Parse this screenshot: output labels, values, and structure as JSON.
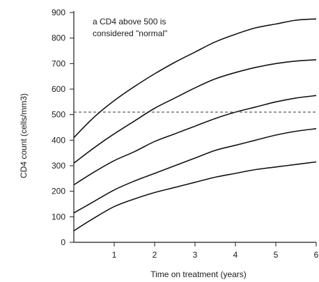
{
  "chart_data": {
    "type": "line",
    "title": "",
    "xlabel": "Time on treatment (years)",
    "ylabel": "CD4 count (cells/mm3)",
    "xlim": [
      0,
      6
    ],
    "ylim": [
      0,
      900
    ],
    "x_ticks": [
      1,
      2,
      3,
      4,
      5,
      6
    ],
    "x_tick_labels": [
      "1",
      "2",
      "3",
      "4",
      "5",
      "6"
    ],
    "y_ticks": [
      0,
      100,
      200,
      300,
      400,
      500,
      600,
      700,
      800,
      900
    ],
    "y_tick_labels": [
      "0",
      "100",
      "200",
      "300",
      "400",
      "500",
      "600",
      "700",
      "800",
      "900"
    ],
    "grid": false,
    "legend": "none",
    "line_color": "#111111",
    "x": [
      0,
      0.5,
      1,
      1.5,
      2,
      2.5,
      3,
      3.5,
      4,
      4.5,
      5,
      5.5,
      6
    ],
    "series": [
      {
        "values": [
          410,
          490,
          555,
          610,
          660,
          705,
          745,
          785,
          815,
          840,
          855,
          870,
          875
        ]
      },
      {
        "values": [
          310,
          370,
          425,
          475,
          525,
          565,
          605,
          640,
          665,
          685,
          700,
          710,
          715
        ]
      },
      {
        "values": [
          225,
          275,
          320,
          355,
          395,
          425,
          455,
          485,
          510,
          530,
          550,
          565,
          575
        ]
      },
      {
        "values": [
          115,
          160,
          205,
          240,
          270,
          300,
          330,
          360,
          380,
          400,
          420,
          435,
          445
        ]
      },
      {
        "values": [
          45,
          95,
          140,
          170,
          195,
          215,
          235,
          255,
          270,
          285,
          295,
          305,
          315
        ]
      }
    ],
    "reference_line": {
      "y": 510
    },
    "annotation": [
      "a CD4 above 500 is",
      "considered \"normal\""
    ]
  }
}
